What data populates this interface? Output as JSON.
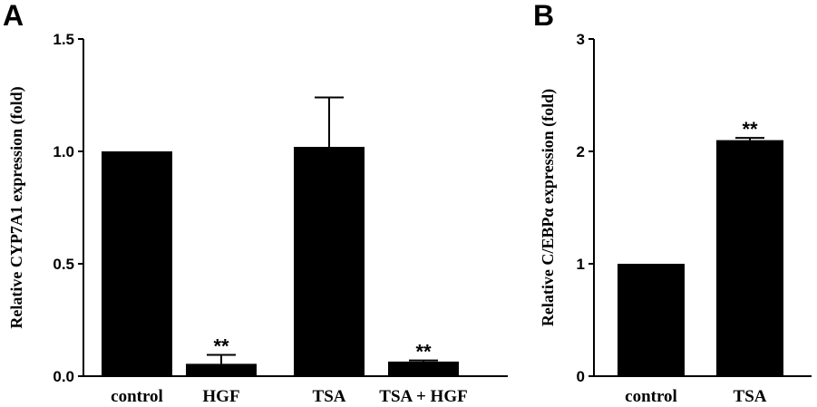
{
  "panels": {
    "a": {
      "letter": "A"
    },
    "b": {
      "letter": "B"
    }
  },
  "chart_data": [
    {
      "type": "bar",
      "panel": "A",
      "title": "",
      "xlabel": "",
      "ylabel": "Relative CYP7A1 expression (fold)",
      "ylim": [
        0,
        1.5
      ],
      "yticks": [
        0,
        0.5,
        1.0,
        1.5
      ],
      "ytick_labels": [
        "0.0",
        "0.5",
        "1.0",
        "1.5"
      ],
      "categories": [
        "control",
        "HGF",
        "TSA",
        "TSA + HGF"
      ],
      "values": [
        1.0,
        0.055,
        1.02,
        0.065
      ],
      "errors": [
        0,
        0.04,
        0.22,
        0.005
      ],
      "annotations": [
        "",
        "**",
        "",
        "**"
      ],
      "bar_color": "#000000",
      "grid": false,
      "legend": "none"
    },
    {
      "type": "bar",
      "panel": "B",
      "title": "",
      "xlabel": "",
      "ylabel": "Relative C/EBPα expression (fold)",
      "ylim": [
        0,
        3
      ],
      "yticks": [
        0,
        1,
        2,
        3
      ],
      "ytick_labels": [
        "0",
        "1",
        "2",
        "3"
      ],
      "categories": [
        "control",
        "TSA"
      ],
      "values": [
        1.0,
        2.1
      ],
      "errors": [
        0,
        0.02
      ],
      "annotations": [
        "",
        "**"
      ],
      "bar_color": "#000000",
      "grid": false,
      "legend": "none"
    }
  ]
}
